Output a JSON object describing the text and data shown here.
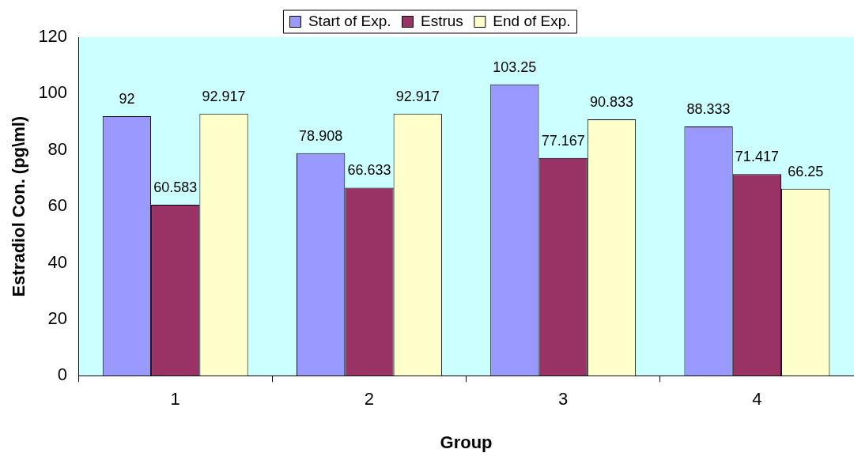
{
  "chart_data": {
    "type": "bar",
    "xlabel": "Group",
    "ylabel": "Estradiol Con. (pg\\ml)",
    "categories": [
      "1",
      "2",
      "3",
      "4"
    ],
    "series": [
      {
        "name": "Start of Exp.",
        "color": "#9999ff",
        "values": [
          92,
          78.908,
          103.25,
          88.333
        ]
      },
      {
        "name": "Estrus",
        "color": "#993366",
        "values": [
          60.583,
          66.633,
          77.167,
          71.417
        ]
      },
      {
        "name": "End of Exp.",
        "color": "#ffffcc",
        "values": [
          92.917,
          92.917,
          90.833,
          66.25
        ]
      }
    ],
    "ylim": [
      0,
      120
    ],
    "yticks": [
      0,
      20,
      40,
      60,
      80,
      100,
      120
    ],
    "grid": false,
    "legend": "top",
    "data_labels": true
  }
}
